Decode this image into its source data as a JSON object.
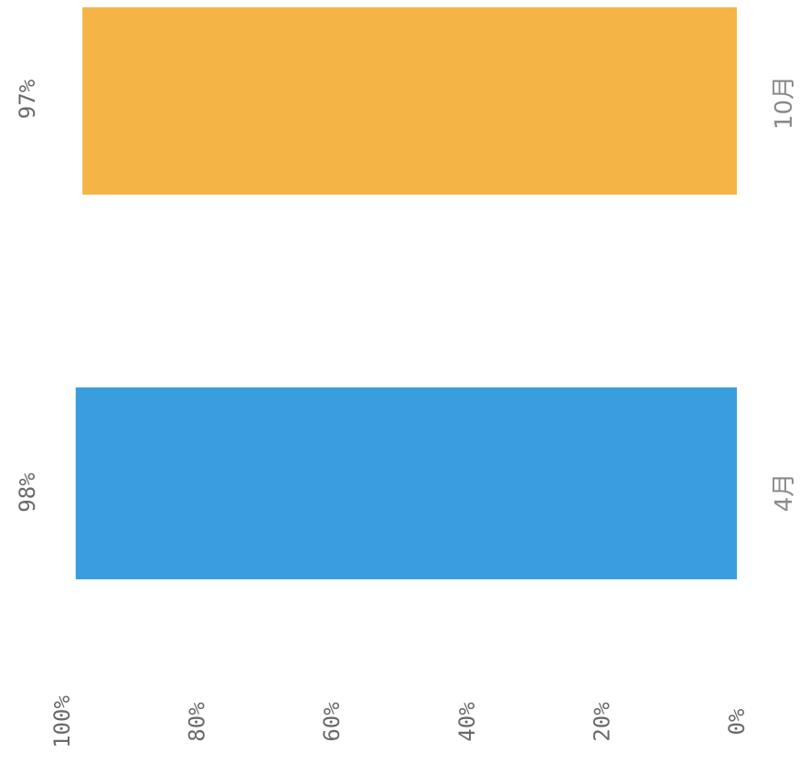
{
  "chart_data": {
    "type": "bar",
    "orientation": "horizontal-bars (image rotated 90°)",
    "categories": [
      "4月",
      "10月"
    ],
    "values": [
      98,
      97
    ],
    "value_labels": [
      "98%",
      "97%"
    ],
    "colors": [
      "#3a9ede",
      "#f5b546"
    ],
    "value_axis": {
      "ticks": [
        "0%",
        "20%",
        "40%",
        "60%",
        "80%",
        "100%"
      ],
      "range": [
        0,
        100
      ]
    },
    "grid": false
  }
}
